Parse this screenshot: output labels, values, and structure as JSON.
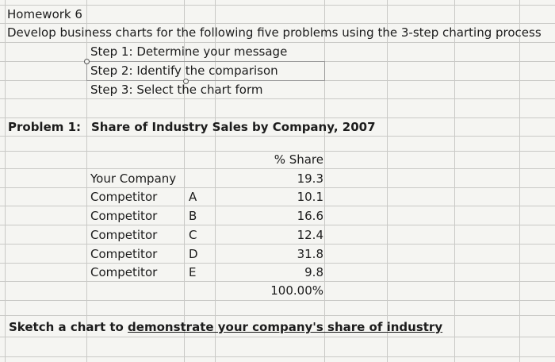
{
  "header": {
    "title": "Homework 6",
    "subtitle": "Develop business charts for the following five problems using the 3-step charting process"
  },
  "steps": [
    {
      "label": "Step 1:",
      "text": "Determine your message"
    },
    {
      "label": "Step 2:",
      "text": "Identify the comparison"
    },
    {
      "label": "Step 3:",
      "text": "Select the chart form"
    }
  ],
  "problem": {
    "label": "Problem 1:",
    "title": "Share of Industry Sales by Company, 2007"
  },
  "table": {
    "header": "% Share",
    "rows": [
      {
        "name": "Your Company",
        "code": "",
        "value": "19.3"
      },
      {
        "name": "Competitor",
        "code": "A",
        "value": "10.1"
      },
      {
        "name": "Competitor",
        "code": "B",
        "value": "16.6"
      },
      {
        "name": "Competitor",
        "code": "C",
        "value": "12.4"
      },
      {
        "name": "Competitor",
        "code": "D",
        "value": "31.8"
      },
      {
        "name": "Competitor",
        "code": "E",
        "value": "9.8"
      }
    ],
    "total": "100.00%"
  },
  "instruction": {
    "prefix": "Sketch a chart to ",
    "underlined": "demonstrate your company's share of industry"
  }
}
